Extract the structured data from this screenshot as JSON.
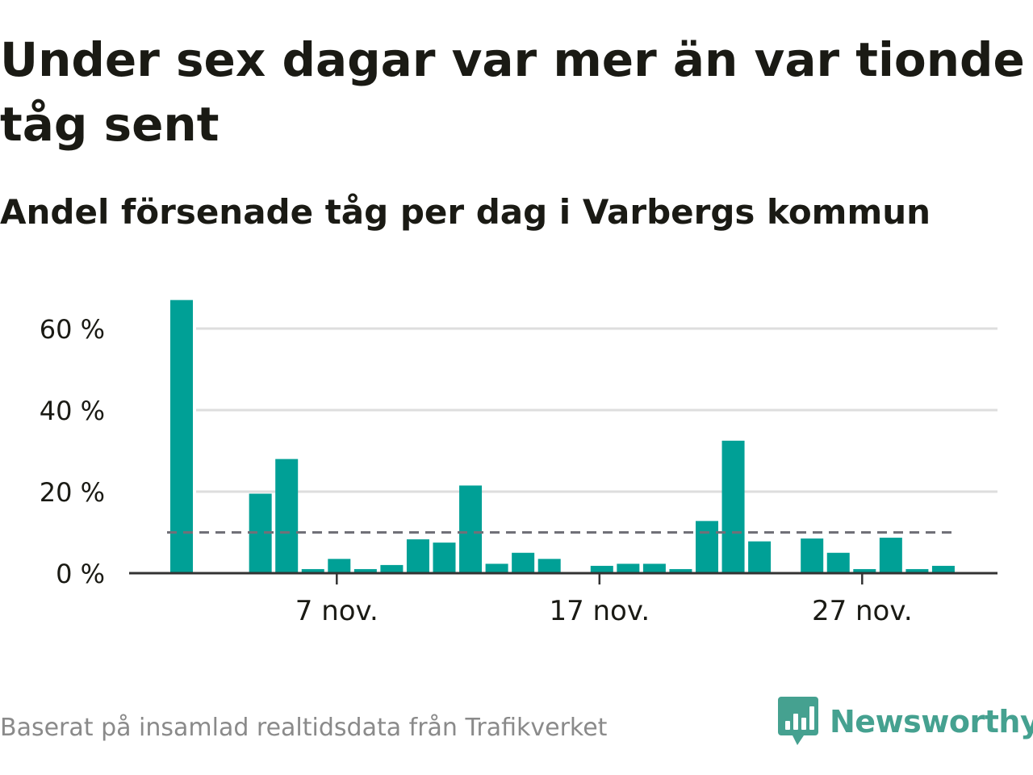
{
  "header": {
    "title": "Under sex dagar var mer än var tionde tåg sent",
    "subtitle": "Andel försenade tåg per dag i Varbergs kommun"
  },
  "footer": {
    "source": "Baserat på insamlad realtidsdata från Trafikverket"
  },
  "brand": {
    "name": "Newsworthy",
    "color": "#45a190",
    "icon": "bar-chart-speech-bubble-icon"
  },
  "colors": {
    "bar": "#00a096",
    "grid": "#dedede",
    "axis": "#333333",
    "threshold": "#707078",
    "text": "#1a1a14"
  },
  "chart_data": {
    "type": "bar",
    "x": [
      "1 nov.",
      "2 nov.",
      "3 nov.",
      "4 nov.",
      "5 nov.",
      "6 nov.",
      "7 nov.",
      "8 nov.",
      "9 nov.",
      "10 nov.",
      "11 nov.",
      "12 nov.",
      "13 nov.",
      "14 nov.",
      "15 nov.",
      "16 nov.",
      "17 nov.",
      "18 nov.",
      "19 nov.",
      "20 nov.",
      "21 nov.",
      "22 nov.",
      "23 nov.",
      "24 nov.",
      "25 nov.",
      "26 nov.",
      "27 nov.",
      "28 nov.",
      "29 nov.",
      "30 nov."
    ],
    "values": [
      67,
      null,
      null,
      19.5,
      28,
      1,
      3.5,
      1,
      2,
      8.3,
      7.5,
      21.5,
      2.3,
      5,
      3.5,
      null,
      1.8,
      2.3,
      2.3,
      1,
      12.8,
      32.5,
      7.8,
      null,
      8.5,
      5,
      1,
      8.7,
      1,
      1.8
    ],
    "xticks": [
      "7 nov.",
      "17 nov.",
      "27 nov."
    ],
    "yticks": [
      "0 %",
      "20 %",
      "40 %",
      "60 %"
    ],
    "ytick_values": [
      0,
      20,
      40,
      60
    ],
    "ylim": [
      0,
      70
    ],
    "reference_line": 10,
    "grid": true,
    "xlabel": "",
    "ylabel": ""
  }
}
